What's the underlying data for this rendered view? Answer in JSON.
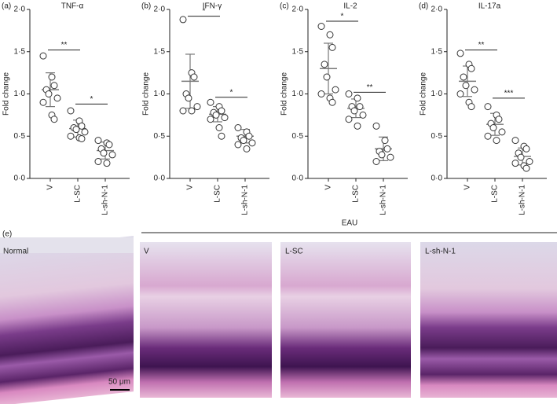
{
  "chart_data": [
    {
      "type": "dotplot",
      "panel": "(a)",
      "title": "TNF-α",
      "y_label": "Fold change",
      "categories": [
        "V",
        "L-SC",
        "L-sh-N-1"
      ],
      "points": [
        [
          1.45,
          1.2,
          1.1,
          1.05,
          1.0,
          0.95,
          0.9,
          0.75,
          0.7
        ],
        [
          0.8,
          0.68,
          0.62,
          0.6,
          0.58,
          0.55,
          0.5,
          0.48,
          0.47
        ],
        [
          0.45,
          0.42,
          0.4,
          0.35,
          0.3,
          0.28,
          0.2,
          0.18
        ]
      ],
      "means": [
        1.05,
        0.59,
        0.33
      ],
      "sd": [
        0.2,
        0.1,
        0.1
      ],
      "significance": [
        "**",
        "*"
      ],
      "significance_y": [
        1.52,
        0.88
      ],
      "ylim": [
        0,
        2
      ],
      "yticks": [
        {
          "value": 0,
          "label": "0·0"
        },
        {
          "value": 0.5,
          "label": "0·5"
        },
        {
          "value": 1,
          "label": "1·0"
        },
        {
          "value": 1.5,
          "label": "1·5"
        },
        {
          "value": 2,
          "label": "2·0"
        }
      ]
    },
    {
      "type": "dotplot",
      "panel": "(b)",
      "title": "IFN-γ",
      "y_label": "Fold change",
      "categories": [
        "V",
        "L-SC",
        "L-sh-N-1"
      ],
      "points": [
        [
          1.88,
          1.25,
          1.2,
          1.0,
          0.95,
          0.85,
          0.8,
          0.8
        ],
        [
          0.9,
          0.85,
          0.8,
          0.78,
          0.75,
          0.72,
          0.7,
          0.6,
          0.5
        ],
        [
          0.6,
          0.55,
          0.5,
          0.48,
          0.45,
          0.42,
          0.4,
          0.35
        ]
      ],
      "means": [
        1.15,
        0.76,
        0.5
      ],
      "sd": [
        0.32,
        0.09,
        0.08
      ],
      "significance": [
        "*",
        "*"
      ],
      "significance_y": [
        1.92,
        0.96
      ],
      "ylim": [
        0,
        2
      ],
      "yticks": [
        {
          "value": 0,
          "label": "0·0"
        },
        {
          "value": 0.5,
          "label": "0·5"
        },
        {
          "value": 1,
          "label": "1·0"
        },
        {
          "value": 1.5,
          "label": "1·5"
        },
        {
          "value": 2,
          "label": "2·0"
        }
      ]
    },
    {
      "type": "dotplot",
      "panel": "(c)",
      "title": "IL-2",
      "y_label": "Fold change",
      "categories": [
        "V",
        "L-SC",
        "L-sh-N-1"
      ],
      "points": [
        [
          1.8,
          1.7,
          1.55,
          1.35,
          1.2,
          1.05,
          1.0,
          0.95,
          0.9
        ],
        [
          1.0,
          0.95,
          0.85,
          0.85,
          0.8,
          0.75,
          0.7,
          0.62
        ],
        [
          0.62,
          0.45,
          0.35,
          0.32,
          0.28,
          0.25,
          0.2
        ]
      ],
      "means": [
        1.3,
        0.83,
        0.35
      ],
      "sd": [
        0.3,
        0.11,
        0.14
      ],
      "significance": [
        "*",
        "**"
      ],
      "significance_y": [
        1.86,
        1.02
      ],
      "ylim": [
        0,
        2
      ],
      "yticks": [
        {
          "value": 0,
          "label": "0·0"
        },
        {
          "value": 0.5,
          "label": "0·5"
        },
        {
          "value": 1,
          "label": "1·0"
        },
        {
          "value": 1.5,
          "label": "1·5"
        },
        {
          "value": 2,
          "label": "2·0"
        }
      ]
    },
    {
      "type": "dotplot",
      "panel": "(d)",
      "title": "IL-17a",
      "y_label": "Fold change",
      "categories": [
        "V",
        "L-SC",
        "L-sh-N-1"
      ],
      "points": [
        [
          1.48,
          1.35,
          1.3,
          1.2,
          1.1,
          1.05,
          1.0,
          0.9,
          0.85
        ],
        [
          0.85,
          0.75,
          0.7,
          0.65,
          0.6,
          0.55,
          0.5,
          0.45
        ],
        [
          0.45,
          0.38,
          0.35,
          0.3,
          0.25,
          0.2,
          0.18,
          0.15,
          0.12
        ]
      ],
      "means": [
        1.15,
        0.64,
        0.26
      ],
      "sd": [
        0.18,
        0.13,
        0.1
      ],
      "significance": [
        "**",
        "***"
      ],
      "significance_y": [
        1.52,
        0.95
      ],
      "ylim": [
        0,
        2
      ],
      "yticks": [
        {
          "value": 0,
          "label": "0·0"
        },
        {
          "value": 0.5,
          "label": "0·5"
        },
        {
          "value": 1,
          "label": "1·0"
        },
        {
          "value": 1.5,
          "label": "1·5"
        },
        {
          "value": 2,
          "label": "2·0"
        }
      ]
    }
  ],
  "histology": {
    "panel": "(e)",
    "group": "EAU",
    "images": [
      "Normal",
      "V",
      "L-SC",
      "L-sh-N-1"
    ],
    "scale_bar": "50 μm"
  }
}
